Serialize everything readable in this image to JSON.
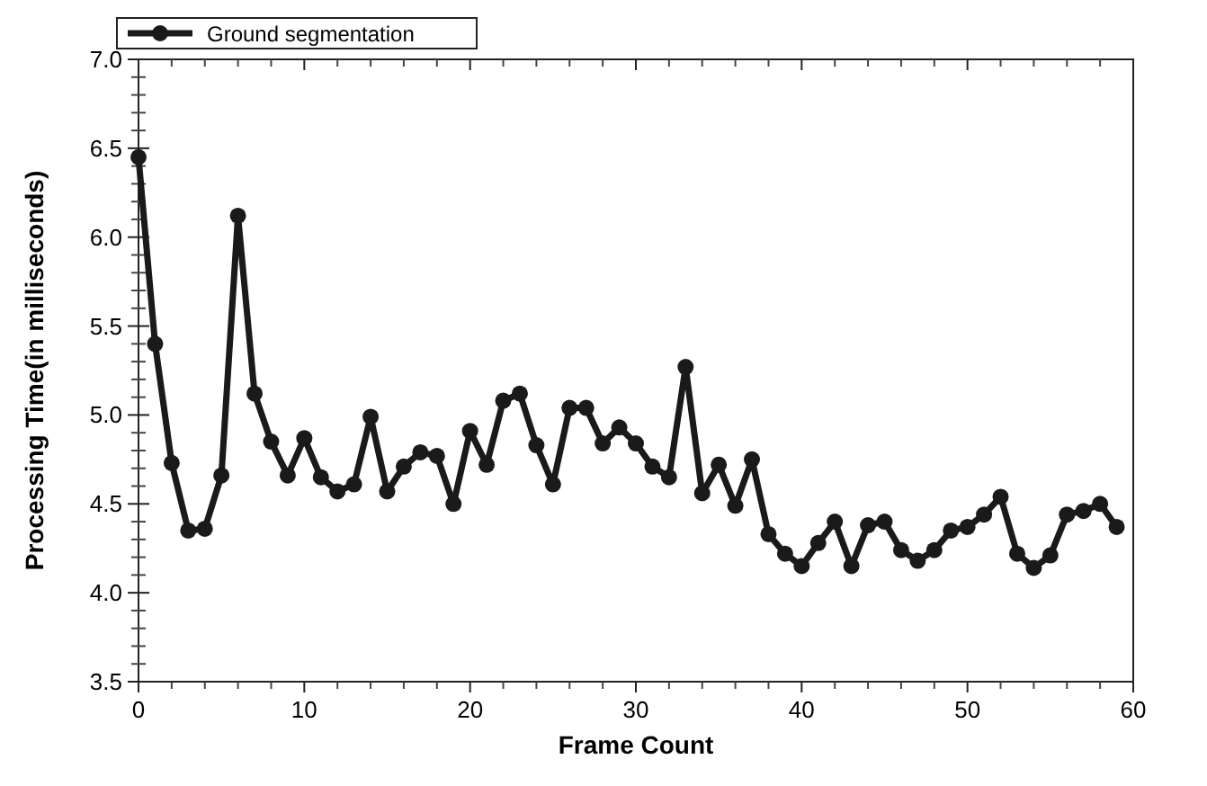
{
  "chart_data": {
    "type": "line",
    "xlabel": "Frame Count",
    "ylabel": "Processing Time(in milliseconds)",
    "x": [
      0,
      1,
      2,
      3,
      4,
      5,
      6,
      7,
      8,
      9,
      10,
      11,
      12,
      13,
      14,
      15,
      16,
      17,
      18,
      19,
      20,
      21,
      22,
      23,
      24,
      25,
      26,
      27,
      28,
      29,
      30,
      31,
      32,
      33,
      34,
      35,
      36,
      37,
      38,
      39,
      40,
      41,
      42,
      43,
      44,
      45,
      46,
      47,
      48,
      49,
      50,
      51,
      52,
      53,
      54,
      55,
      56,
      57,
      58,
      59
    ],
    "series": [
      {
        "name": "Ground segmentation",
        "color": "#1a1a1a",
        "values": [
          6.45,
          5.4,
          4.73,
          4.35,
          4.36,
          4.66,
          6.12,
          5.12,
          4.85,
          4.66,
          4.87,
          4.65,
          4.57,
          4.61,
          4.99,
          4.57,
          4.71,
          4.79,
          4.77,
          4.5,
          4.91,
          4.72,
          5.08,
          5.12,
          4.83,
          4.61,
          5.04,
          5.04,
          4.84,
          4.93,
          4.84,
          4.71,
          4.65,
          5.27,
          4.56,
          4.72,
          4.49,
          4.75,
          4.33,
          4.22,
          4.15,
          4.28,
          4.4,
          4.15,
          4.38,
          4.4,
          4.24,
          4.18,
          4.24,
          4.35,
          4.37,
          4.44,
          4.54,
          4.22,
          4.14,
          4.21,
          4.44,
          4.46,
          4.5,
          4.37
        ]
      }
    ],
    "xlim": [
      0,
      60
    ],
    "xticks": [
      0,
      10,
      20,
      30,
      40,
      50,
      60
    ],
    "ylim": [
      3.5,
      7
    ],
    "yticks": [
      3.5,
      {
        "value": 4,
        "label": "4.0"
      },
      4.5,
      {
        "value": 5,
        "label": "5.0"
      },
      5.5,
      {
        "value": 6,
        "label": "6.0"
      },
      6.5,
      {
        "value": 7,
        "label": "7.0"
      }
    ],
    "grid": false,
    "legend": "top left",
    "marker": "circle",
    "line_style": "solid"
  }
}
